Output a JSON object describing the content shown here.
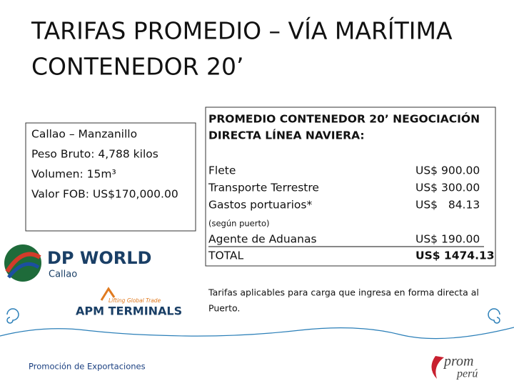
{
  "title": {
    "line1": "TARIFAS PROMEDIO – VÍA MARÍTIMA",
    "line2": "CONTENEDOR 20’"
  },
  "shipment": {
    "lines": [
      "Callao – Manzanillo",
      "Peso Bruto: 4,788 kilos",
      "Volumen: 15m³",
      "Valor FOB: US$170,000.00"
    ]
  },
  "rates": {
    "header": [
      "PROMEDIO  CONTENEDOR  20’  NEGOCIACIÓN",
      "DIRECTA LÍNEA NAVIERA:"
    ],
    "rows": [
      {
        "item": "Flete",
        "amount": "US$ 900.00"
      },
      {
        "item": "Transporte Terrestre",
        "amount": "US$ 300.00"
      },
      {
        "item": "Gastos portuarios*",
        "amount": "US$   84.13"
      }
    ],
    "port_note": "(según puerto)",
    "customs": {
      "item": "Agente de Aduanas",
      "amount": "US$ 190.00"
    },
    "total": {
      "item": "TOTAL",
      "amount": "US$ 1474.13"
    }
  },
  "note": [
    "Tarifas aplicables para carga que ingresa en forma directa al",
    "Puerto."
  ],
  "logos": {
    "dp_world": "DP WORLD",
    "dp_callao": "Callao",
    "apm_tagline": "Lifting Global Trade",
    "apm": "APM TERMINALS",
    "promo": "Promoción de Exportaciones",
    "prom": "prom",
    "peru": "perú"
  }
}
